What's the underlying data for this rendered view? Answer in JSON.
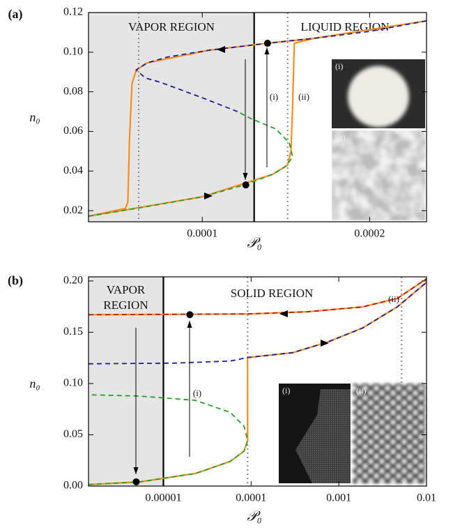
{
  "chart_data": [
    {
      "type": "line",
      "panel_label": "(a)",
      "xlabel": "𝒫₀",
      "ylabel": "n₀",
      "xscale": "linear",
      "xlim": [
        3.2e-05,
        0.000234
      ],
      "ylim": [
        0.0144,
        0.12
      ],
      "xticks": [
        0.0001,
        0.0002
      ],
      "yticks": [
        0.02,
        0.04,
        0.06,
        0.08,
        {
          "value": 0.1,
          "label": "0.10"
        },
        0.12
      ],
      "regions": [
        "VAPOR REGION",
        "LIQUID REGION"
      ],
      "arrow_labels": [
        "(i)",
        "(ii)"
      ],
      "inset_labels": [
        "(i)",
        "(ii)"
      ],
      "vlines": [
        {
          "x": 0.000131,
          "style": "solid"
        },
        {
          "x": 6.2e-05,
          "style": "dotted"
        },
        {
          "x": 0.000151,
          "style": "dotted"
        }
      ],
      "points": {
        "x": [
          0.000139,
          0.000126
        ],
        "y": [
          0.1045,
          0.033
        ]
      },
      "series": [
        {
          "color": "#ff8c1a",
          "dashed": false,
          "x": [
            3.2e-05,
            5.4e-05,
            5.55e-05,
            5.65e-05,
            5.8e-05,
            6.05e-05,
            6.7e-05,
            0.000104,
            0.000139,
            0.000167,
            0.000234
          ],
          "values": [
            0.0172,
            0.0211,
            0.0243,
            0.056,
            0.0841,
            0.091,
            0.0946,
            0.101,
            0.1045,
            0.107,
            0.1158
          ]
        },
        {
          "color": "#ff8c1a",
          "dashed": false,
          "x": [
            3.2e-05,
            0.0001,
            0.000142,
            0.000151,
            0.000153,
            0.000154,
            0.000155,
            0.000167,
            0.000234
          ],
          "values": [
            0.0172,
            0.027,
            0.0383,
            0.043,
            0.05,
            0.0735,
            0.1045,
            0.107,
            0.1158
          ]
        },
        {
          "color": "#1c1c96",
          "dashed": true,
          "x": [
            0.000234,
            0.0002,
            0.000167,
            0.000139,
            0.000104,
            7.9e-05,
            6.7e-05,
            6.05e-05,
            6.6e-05,
            7.5e-05,
            0.0001,
            0.000121
          ],
          "values": [
            0.1158,
            0.1105,
            0.107,
            0.1045,
            0.101,
            0.0975,
            0.0946,
            0.091,
            0.087,
            0.0848,
            0.077,
            0.07
          ]
        },
        {
          "color": "#22a022",
          "dashed": true,
          "x": [
            3.2e-05,
            6.25e-05,
            0.0001,
            0.000125,
            0.000142,
            0.00015,
            0.000154,
            0.000152,
            0.000144,
            0.000129,
            0.000121
          ],
          "values": [
            0.0172,
            0.0214,
            0.027,
            0.033,
            0.0383,
            0.0425,
            0.0471,
            0.0542,
            0.0612,
            0.0665,
            0.07
          ]
        }
      ]
    },
    {
      "type": "line",
      "panel_label": "(b)",
      "xlabel": "𝒫₀",
      "ylabel": "n₀",
      "xscale": "log",
      "xlim": [
        1.4e-06,
        0.01
      ],
      "ylim": [
        0,
        0.204
      ],
      "xticks": [
        1e-05,
        0.0001,
        0.001,
        0.01
      ],
      "yticks": [
        {
          "value": 0,
          "label": "0.00"
        },
        0.05,
        {
          "value": 0.1,
          "label": "0.10"
        },
        0.15,
        {
          "value": 0.2,
          "label": "0.20"
        }
      ],
      "regions": [
        "VAPOR REGION",
        "SOLID REGION"
      ],
      "arrow_labels": [
        "(i)",
        "(ii)"
      ],
      "inset_labels": [
        "(i)",
        "(ii)"
      ],
      "vlines": [
        {
          "x": 1e-05,
          "style": "solid"
        },
        {
          "x": 9.12e-05,
          "style": "dotted"
        },
        {
          "x": 0.0052,
          "style": "dotted"
        }
      ],
      "points": {
        "x": [
          4.9e-06,
          2e-05
        ],
        "y": [
          0.0041,
          0.1671
        ]
      },
      "series": [
        {
          "color": "#ff8c1a",
          "dashed": false,
          "x": [
            1.4e-06,
            9.12e-05,
            0.000431,
            0.00186,
            0.00464,
            0.01
          ],
          "values": [
            0.1671,
            0.1678,
            0.1699,
            0.1747,
            0.1829,
            0.2021
          ]
        },
        {
          "color": "#ff8c1a",
          "dashed": false,
          "x": [
            1.4e-06,
            5.4e-06,
            2.32e-05,
            5.78e-05,
            8.33e-05,
            9.12e-05,
            9.12e-05,
            0.000299,
            0.000746,
            0.00186,
            0.00464,
            0.01
          ],
          "values": [
            0.0014,
            0.0041,
            0.0123,
            0.024,
            0.0342,
            0.0445,
            0.1253,
            0.1301,
            0.1404,
            0.1541,
            0.1747,
            0.1986
          ]
        },
        {
          "color": "#b01a1a",
          "dashed": true,
          "x": [
            1.4e-06,
            9.12e-05,
            0.000431,
            0.00186,
            0.00464,
            0.01
          ],
          "values": [
            0.1671,
            0.1678,
            0.1699,
            0.1747,
            0.1829,
            0.2021
          ]
        },
        {
          "color": "#1c1c96",
          "dashed": true,
          "x": [
            1.4e-06,
            1.34e-05,
            5.78e-05,
            9.12e-05,
            0.000299,
            0.000746,
            0.00186,
            0.00464,
            0.01
          ],
          "values": [
            0.1192,
            0.1199,
            0.1219,
            0.1253,
            0.1301,
            0.1404,
            0.1541,
            0.1747,
            0.1986
          ]
        },
        {
          "color": "#22a022",
          "dashed": true,
          "x": [
            1.4e-06,
            5.4e-06,
            2.32e-05,
            5.78e-05,
            8.33e-05,
            9.12e-05,
            8.33e-05,
            5.78e-05,
            2.32e-05,
            5.4e-06,
            1.4e-06
          ],
          "values": [
            0.0014,
            0.0041,
            0.0123,
            0.024,
            0.0342,
            0.0445,
            0.0582,
            0.0719,
            0.0836,
            0.0877,
            0.089
          ]
        }
      ]
    }
  ]
}
